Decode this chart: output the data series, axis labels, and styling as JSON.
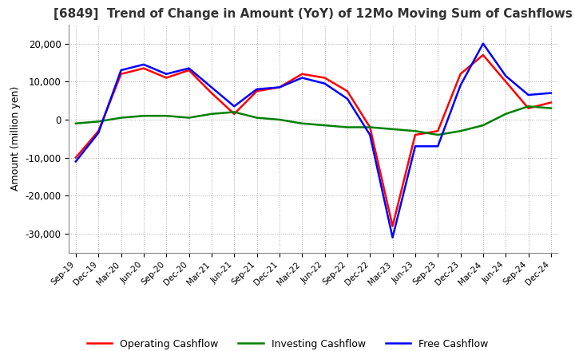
{
  "title": "[6849]  Trend of Change in Amount (YoY) of 12Mo Moving Sum of Cashflows",
  "ylabel": "Amount (million yen)",
  "x_labels": [
    "Sep-19",
    "Dec-19",
    "Mar-20",
    "Jun-20",
    "Sep-20",
    "Dec-20",
    "Mar-21",
    "Jun-21",
    "Sep-21",
    "Dec-21",
    "Mar-22",
    "Jun-22",
    "Sep-22",
    "Dec-22",
    "Mar-23",
    "Jun-23",
    "Sep-23",
    "Dec-23",
    "Mar-24",
    "Jun-24",
    "Sep-24",
    "Dec-24"
  ],
  "operating": [
    -10000,
    -3000,
    12000,
    13500,
    11000,
    13000,
    7000,
    1500,
    7500,
    8500,
    12000,
    11000,
    7500,
    -2000,
    -28000,
    -4000,
    -3000,
    12000,
    17000,
    10000,
    3000,
    4500
  ],
  "investing": [
    -1000,
    -500,
    500,
    1000,
    1000,
    500,
    1500,
    2000,
    500,
    0,
    -1000,
    -1500,
    -2000,
    -2000,
    -2500,
    -3000,
    -4000,
    -3000,
    -1500,
    1500,
    3500,
    3000
  ],
  "free": [
    -11000,
    -3500,
    13000,
    14500,
    12000,
    13500,
    8500,
    3500,
    8000,
    8500,
    11000,
    9500,
    5500,
    -4000,
    -31000,
    -7000,
    -7000,
    9000,
    20000,
    11500,
    6500,
    7000
  ],
  "operating_color": "#ff0000",
  "investing_color": "#008000",
  "free_color": "#0000ff",
  "ylim": [
    -35000,
    25000
  ],
  "yticks": [
    -30000,
    -20000,
    -10000,
    0,
    10000,
    20000
  ],
  "bg_color": "#ffffff",
  "grid_color": "#aaaaaa",
  "title_color": "#333333",
  "title_fontsize": 11
}
